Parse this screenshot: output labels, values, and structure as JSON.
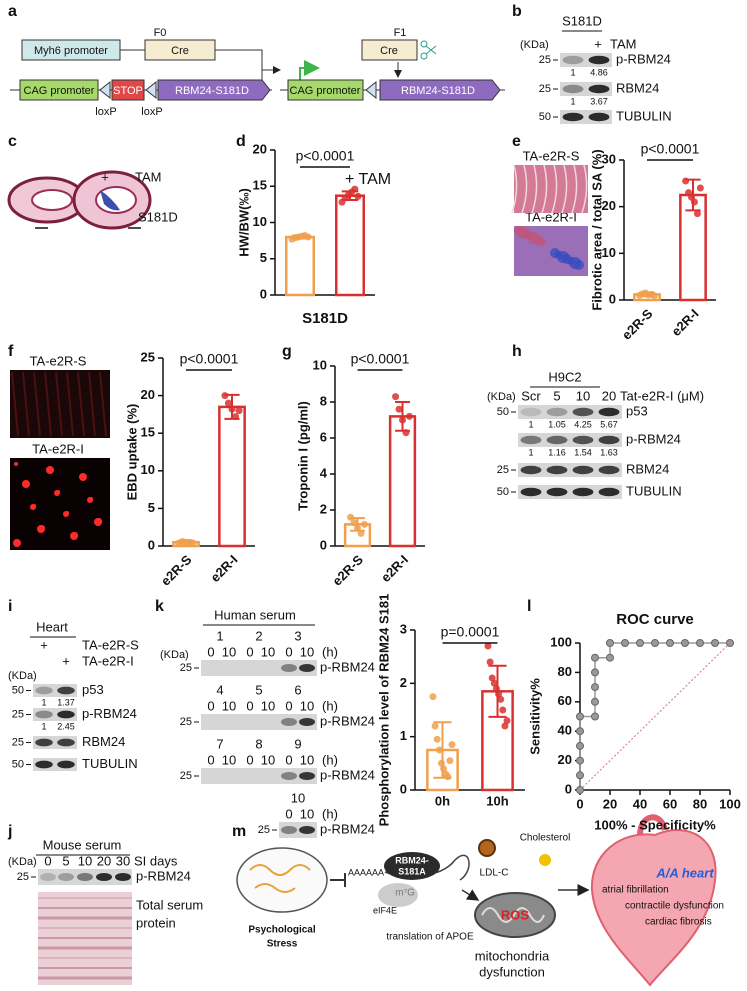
{
  "panel_letters": [
    "a",
    "b",
    "c",
    "d",
    "e",
    "f",
    "g",
    "h",
    "i",
    "j",
    "k",
    "l",
    "m"
  ],
  "panel_a": {
    "f0": "F0",
    "f1": "F1",
    "myh6": "Myh6 promoter",
    "cre": "Cre",
    "cag": "CAG promoter",
    "stop": "STOP",
    "construct": "RBM24-S181D",
    "loxp": "loxP"
  },
  "panel_b": {
    "genotype": "S181D",
    "kda": "(KDa)",
    "treatment_sign": "+",
    "treatment": "TAM",
    "rows": [
      {
        "label": "p-RBM24",
        "marker": 25,
        "quant": [
          1,
          4.86
        ]
      },
      {
        "label": "RBM24",
        "marker": 25,
        "quant": [
          1,
          3.67
        ]
      },
      {
        "label": "TUBULIN",
        "marker": 50
      }
    ]
  },
  "panel_c": {
    "treatment_sign": "+",
    "treatment": "TAM",
    "genotype": "S181D"
  },
  "panel_e": {
    "images": [
      "TA-e2R-S",
      "TA-e2R-I"
    ]
  },
  "panel_f": {
    "images": [
      "TA-e2R-S",
      "TA-e2R-I"
    ]
  },
  "panel_h": {
    "cell_line": "H9C2",
    "kda": "(KDa)",
    "lanes": [
      "Scr",
      5,
      10,
      20
    ],
    "treatment": "Tat-e2R-I (μM)",
    "rows": [
      {
        "label": "p53",
        "marker": 50,
        "quant": [
          1,
          1.05,
          4.25,
          5.67
        ]
      },
      {
        "label": "p-RBM24",
        "quant": [
          1,
          1.16,
          1.54,
          1.63
        ]
      },
      {
        "label": "RBM24",
        "marker": 25
      },
      {
        "label": "TUBULIN",
        "marker": 50
      }
    ]
  },
  "panel_i": {
    "tissue": "Heart",
    "conditions": [
      {
        "sign": "+",
        "label": "TA-e2R-S"
      },
      {
        "sign": "+",
        "label": "TA-e2R-I"
      }
    ],
    "kda": "(KDa)",
    "rows": [
      {
        "label": "p53",
        "marker": 50,
        "quant": [
          1,
          1.37
        ]
      },
      {
        "label": "p-RBM24",
        "marker": 25,
        "quant": [
          1,
          2.45
        ]
      },
      {
        "label": "RBM24",
        "marker": 25
      },
      {
        "label": "TUBULIN",
        "marker": 50
      }
    ]
  },
  "panel_j": {
    "sample": "Mouse serum",
    "kda": "(KDa)",
    "days": [
      0,
      5,
      10,
      20,
      30
    ],
    "days_label": "SI days",
    "marker": 25,
    "blot": "p-RBM24",
    "stain": [
      "Total serum",
      "protein"
    ]
  },
  "panel_k": {
    "sample": "Human serum",
    "kda": "(KDa)",
    "subjects": [
      1,
      2,
      3,
      4,
      5,
      6,
      7,
      8,
      9,
      10
    ],
    "timepoints": [
      0,
      10
    ],
    "unit": "(h)",
    "marker": 25,
    "blot": "p-RBM24"
  },
  "panel_m": {
    "stress": [
      "Psychological",
      "Stress"
    ],
    "polya": "AAAAAA",
    "protein": [
      "RBM24-",
      "S181A"
    ],
    "cap": "m⁷G",
    "factor": "eIF4E",
    "translation": "translation of APOE",
    "ldl": "LDL-C",
    "cholesterol": "Cholesterol",
    "ros": "ROS",
    "mito": [
      "mitochondria",
      "dysfunction"
    ],
    "heart": "A/A heart",
    "outcomes": [
      "atrial fibrillation",
      "contractile dysfunction",
      "cardiac fibrosis"
    ]
  },
  "chart_data": [
    {
      "type": "bar",
      "ylabel": "HW/BW(‰)",
      "xlabel": "S181D",
      "categories": [
        null,
        null
      ],
      "values": [
        8.0,
        13.7
      ],
      "errors": [
        0.2,
        0.6
      ],
      "points": [
        [
          7.7,
          7.9,
          8.0,
          8.1,
          8.2,
          8.0
        ],
        [
          12.8,
          13.4,
          13.8,
          14.2,
          14.6,
          13.6
        ]
      ],
      "colors": [
        "#f0a04b",
        "#d9302f"
      ],
      "ylim": [
        0,
        20
      ],
      "yticks": [
        0,
        5,
        10,
        15,
        20
      ],
      "p_value": "p<0.0001",
      "annotation": "+ TAM"
    },
    {
      "type": "bar",
      "ylabel": "Fibrotic area / total SA (%)",
      "categories": [
        "e2R-S",
        "e2R-I"
      ],
      "values": [
        1.2,
        22.5
      ],
      "errors": [
        0.4,
        3.3
      ],
      "points": [
        [
          1.0,
          1.3,
          1.5,
          1.1,
          1.2,
          0.9
        ],
        [
          25.5,
          23.0,
          22.0,
          21.0,
          18.5,
          24.0
        ]
      ],
      "colors": [
        "#f0a04b",
        "#d9302f"
      ],
      "ylim": [
        0,
        30
      ],
      "yticks": [
        0,
        10,
        20,
        30
      ],
      "p_value": "p<0.0001"
    },
    {
      "type": "bar",
      "ylabel": "EBD uptake (%)",
      "categories": [
        "e2R-S",
        "e2R-I"
      ],
      "values": [
        0.5,
        18.5
      ],
      "errors": [
        0.2,
        1.6
      ],
      "points": [
        [
          0.4,
          0.6,
          0.5,
          0.5,
          0.4
        ],
        [
          20.0,
          19.0,
          18.2,
          17.2,
          18.0
        ]
      ],
      "colors": [
        "#f0a04b",
        "#d9302f"
      ],
      "ylim": [
        0,
        25
      ],
      "yticks": [
        0,
        5,
        10,
        15,
        20,
        25
      ],
      "p_value": "p<0.0001"
    },
    {
      "type": "bar",
      "ylabel": "Troponin I (pg/ml)",
      "categories": [
        "e2R-S",
        "e2R-I"
      ],
      "values": [
        1.2,
        7.2
      ],
      "errors": [
        0.35,
        0.8
      ],
      "points": [
        [
          1.6,
          1.3,
          1.0,
          0.7,
          1.2
        ],
        [
          8.3,
          7.6,
          7.0,
          6.3,
          7.2
        ]
      ],
      "colors": [
        "#f0a04b",
        "#d9302f"
      ],
      "ylim": [
        0,
        10
      ],
      "yticks": [
        0,
        2,
        4,
        6,
        8,
        10
      ],
      "p_value": "p<0.0001"
    },
    {
      "type": "bar",
      "ylabel": "Phosphorylation level of RBM24 S181",
      "categories": [
        "0h",
        "10h"
      ],
      "values": [
        0.75,
        1.85
      ],
      "errors": [
        0.52,
        0.48
      ],
      "points": [
        [
          1.75,
          1.2,
          0.95,
          0.75,
          0.5,
          0.4,
          0.3,
          0.25,
          0.55,
          0.85
        ],
        [
          2.7,
          2.4,
          2.1,
          2.0,
          1.9,
          1.8,
          1.7,
          1.5,
          1.2,
          1.3
        ]
      ],
      "colors": [
        "#f0a04b",
        "#d9302f"
      ],
      "ylim": [
        0,
        3
      ],
      "yticks": [
        0,
        1,
        2,
        3
      ],
      "p_value": "p=0.0001"
    },
    {
      "type": "line",
      "title": "ROC curve",
      "xlabel": "100% - Specificity%",
      "ylabel": "Sensitivity%",
      "x": [
        0,
        0,
        0,
        0,
        0,
        0,
        10,
        10,
        10,
        10,
        10,
        20,
        20,
        30,
        40,
        50,
        60,
        70,
        80,
        90,
        100
      ],
      "y": [
        0,
        10,
        20,
        30,
        40,
        50,
        50,
        60,
        70,
        80,
        90,
        90,
        100,
        100,
        100,
        100,
        100,
        100,
        100,
        100,
        100
      ],
      "color": "#999999",
      "xlim": [
        0,
        100
      ],
      "ylim": [
        0,
        100
      ],
      "xticks": [
        0,
        20,
        40,
        60,
        80,
        100
      ],
      "yticks": [
        0,
        20,
        40,
        60,
        80,
        100
      ]
    }
  ]
}
